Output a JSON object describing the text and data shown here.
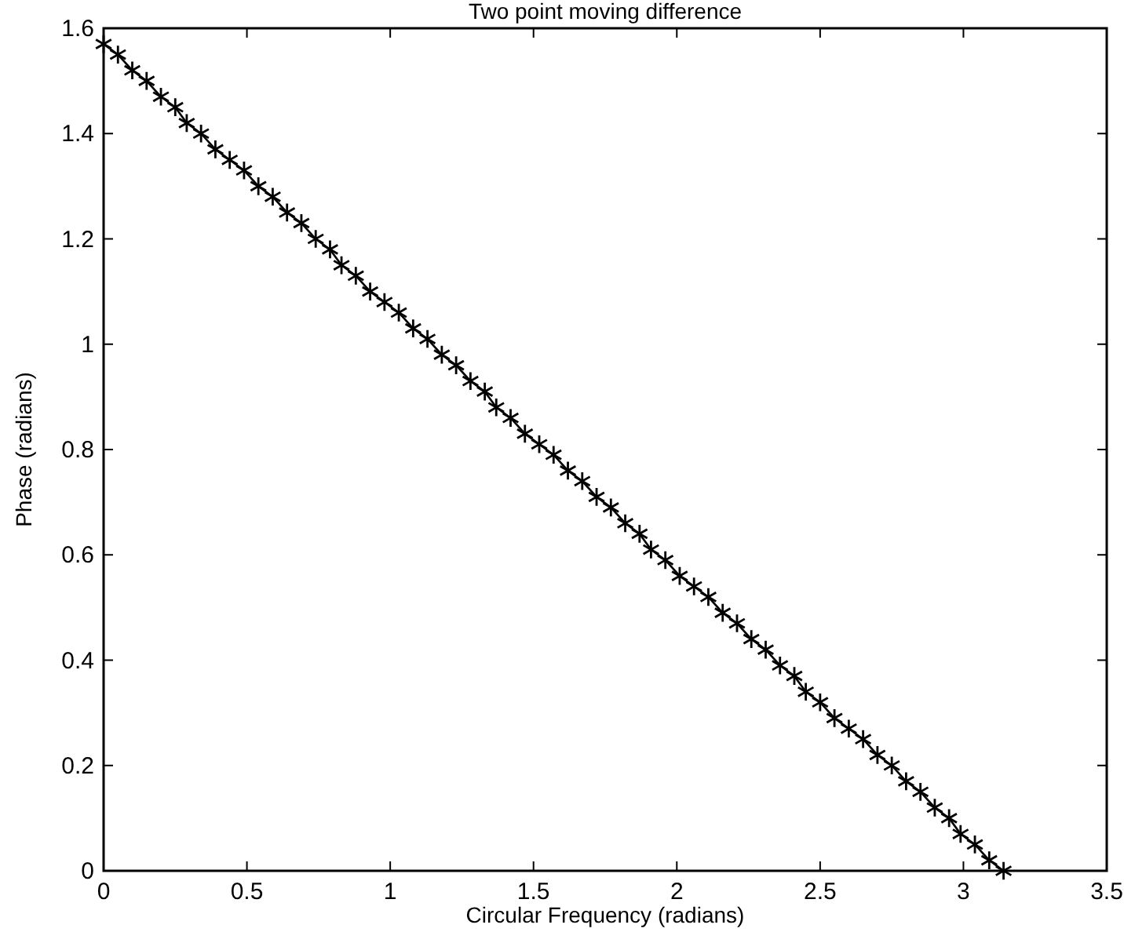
{
  "chart_data": {
    "type": "line",
    "title": "Two point moving difference",
    "xlabel": "Circular Frequency  (radians)",
    "ylabel": "Phase  (radians)",
    "x": [
      0,
      0.05,
      0.1,
      0.15,
      0.2,
      0.25,
      0.29,
      0.34,
      0.39,
      0.44,
      0.49,
      0.54,
      0.59,
      0.64,
      0.69,
      0.74,
      0.79,
      0.83,
      0.88,
      0.93,
      0.98,
      1.03,
      1.08,
      1.13,
      1.18,
      1.23,
      1.28,
      1.33,
      1.37,
      1.42,
      1.47,
      1.52,
      1.57,
      1.62,
      1.67,
      1.72,
      1.77,
      1.82,
      1.87,
      1.91,
      1.96,
      2.01,
      2.06,
      2.11,
      2.16,
      2.21,
      2.26,
      2.31,
      2.36,
      2.41,
      2.45,
      2.5,
      2.55,
      2.6,
      2.65,
      2.7,
      2.75,
      2.8,
      2.85,
      2.9,
      2.95,
      2.99,
      3.04,
      3.09,
      3.14
    ],
    "series": [
      {
        "color": "#000000",
        "values": [
          1.57,
          1.55,
          1.52,
          1.5,
          1.47,
          1.45,
          1.42,
          1.4,
          1.37,
          1.35,
          1.33,
          1.3,
          1.28,
          1.25,
          1.23,
          1.2,
          1.18,
          1.15,
          1.13,
          1.1,
          1.08,
          1.06,
          1.03,
          1.01,
          0.98,
          0.96,
          0.93,
          0.91,
          0.88,
          0.86,
          0.83,
          0.81,
          0.79,
          0.76,
          0.74,
          0.71,
          0.69,
          0.66,
          0.64,
          0.61,
          0.59,
          0.56,
          0.54,
          0.52,
          0.49,
          0.47,
          0.44,
          0.42,
          0.39,
          0.37,
          0.34,
          0.32,
          0.29,
          0.27,
          0.25,
          0.22,
          0.2,
          0.17,
          0.15,
          0.12,
          0.1,
          0.07,
          0.05,
          0.02,
          0.0
        ]
      }
    ],
    "xlim": [
      0,
      3.5
    ],
    "xticks": [
      0,
      0.5,
      1,
      1.5,
      2,
      2.5,
      3,
      3.5
    ],
    "ylim": [
      0,
      1.6
    ],
    "yticks": [
      0,
      0.2,
      0.4,
      0.6,
      0.8,
      1,
      1.2,
      1.4,
      1.6
    ],
    "grid": false,
    "marker": "cross",
    "line_style": "solid"
  }
}
